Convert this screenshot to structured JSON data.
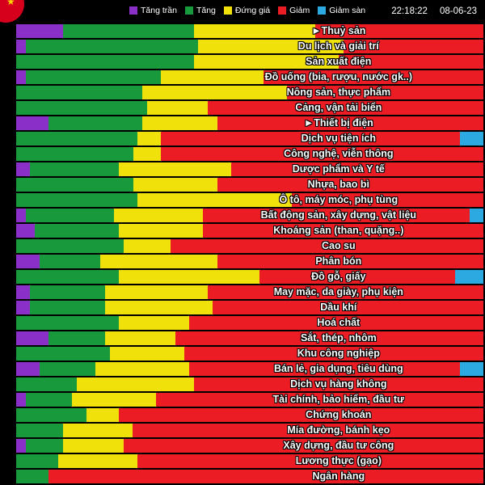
{
  "header": {
    "time": "22:18:22",
    "date": "08-06-23"
  },
  "legend": [
    {
      "key": "ceiling",
      "label": "Tăng trần",
      "color": "#8b2fc9"
    },
    {
      "key": "up",
      "label": "Tăng",
      "color": "#189a3c"
    },
    {
      "key": "unchanged",
      "label": "Đứng giá",
      "color": "#f0e10a"
    },
    {
      "key": "down",
      "label": "Giảm",
      "color": "#ec1c24"
    },
    {
      "key": "floor",
      "label": "Giảm sàn",
      "color": "#2ca9e1"
    }
  ],
  "chart_data": {
    "type": "bar",
    "variant": "horizontal-stacked",
    "value_note": "segment widths estimated as percent of each sector bar",
    "series": [
      "Tăng trần",
      "Tăng",
      "Đứng giá",
      "Giảm",
      "Giảm sàn"
    ],
    "colors": [
      "#8b2fc9",
      "#189a3c",
      "#f0e10a",
      "#ec1c24",
      "#2ca9e1"
    ],
    "rows": [
      {
        "label": "►Thuỷ sản",
        "values": [
          10,
          28,
          26,
          36,
          0
        ]
      },
      {
        "label": "Du lịch và giải trí",
        "values": [
          2,
          37,
          31,
          30,
          0
        ]
      },
      {
        "label": "Sản xuất điện",
        "values": [
          0,
          38,
          31,
          31,
          0
        ]
      },
      {
        "label": "Đồ uống (bia, rượu, nước gk..)",
        "values": [
          2,
          29,
          22,
          47,
          0
        ]
      },
      {
        "label": "Nông sản, thực phẩm",
        "values": [
          0,
          27,
          31,
          42,
          0
        ]
      },
      {
        "label": "Cảng, vận tải biển",
        "values": [
          0,
          28,
          13,
          59,
          0
        ]
      },
      {
        "label": "►Thiết bị điện",
        "values": [
          7,
          20,
          16,
          57,
          0
        ]
      },
      {
        "label": "Dịch vụ tiện ích",
        "values": [
          0,
          26,
          5,
          64,
          5
        ]
      },
      {
        "label": "Công nghệ, viễn thông",
        "values": [
          0,
          25,
          6,
          69,
          0
        ]
      },
      {
        "label": "Dược phẩm và Y tế",
        "values": [
          3,
          19,
          24,
          54,
          0
        ]
      },
      {
        "label": "Nhựa, bao bì",
        "values": [
          0,
          25,
          18,
          57,
          0
        ]
      },
      {
        "label": "Ô tô, máy móc, phụ tùng",
        "values": [
          0,
          26,
          33,
          41,
          0
        ]
      },
      {
        "label": "Bất động sản, xây dựng, vật liệu",
        "values": [
          2,
          19,
          19,
          57,
          3
        ]
      },
      {
        "label": "Khoáng sản (than, quặng..)",
        "values": [
          4,
          18,
          18,
          60,
          0
        ]
      },
      {
        "label": "Cao su",
        "values": [
          0,
          23,
          10,
          67,
          0
        ]
      },
      {
        "label": "Phân bón",
        "values": [
          5,
          13,
          25,
          57,
          0
        ]
      },
      {
        "label": "Đồ gỗ, giấy",
        "values": [
          0,
          22,
          30,
          42,
          6
        ]
      },
      {
        "label": "May mặc, da giày, phụ kiện",
        "values": [
          3,
          16,
          22,
          59,
          0
        ]
      },
      {
        "label": "Dầu khí",
        "values": [
          3,
          16,
          23,
          58,
          0
        ]
      },
      {
        "label": "Hoá chất",
        "values": [
          0,
          22,
          15,
          63,
          0
        ]
      },
      {
        "label": "Sắt, thép, nhôm",
        "values": [
          7,
          12,
          15,
          66,
          0
        ]
      },
      {
        "label": "Khu công nghiệp",
        "values": [
          0,
          20,
          16,
          64,
          0
        ]
      },
      {
        "label": "Bán lẻ, gia dụng, tiêu dùng",
        "values": [
          5,
          12,
          20,
          58,
          5
        ]
      },
      {
        "label": "Dịch vụ hàng không",
        "values": [
          0,
          13,
          25,
          62,
          0
        ]
      },
      {
        "label": "Tài chính, bảo hiểm, đầu tư",
        "values": [
          2,
          10,
          18,
          70,
          0
        ]
      },
      {
        "label": "Chứng khoán",
        "values": [
          0,
          15,
          7,
          78,
          0
        ]
      },
      {
        "label": "Mía đường, bánh kẹo",
        "values": [
          0,
          10,
          15,
          75,
          0
        ]
      },
      {
        "label": "Xây dựng, đầu tư công",
        "values": [
          2,
          8,
          13,
          77,
          0
        ]
      },
      {
        "label": "Lương thực (gạo)",
        "values": [
          0,
          9,
          17,
          74,
          0
        ]
      },
      {
        "label": "Ngân hàng",
        "values": [
          0,
          7,
          0,
          93,
          0
        ]
      }
    ]
  }
}
